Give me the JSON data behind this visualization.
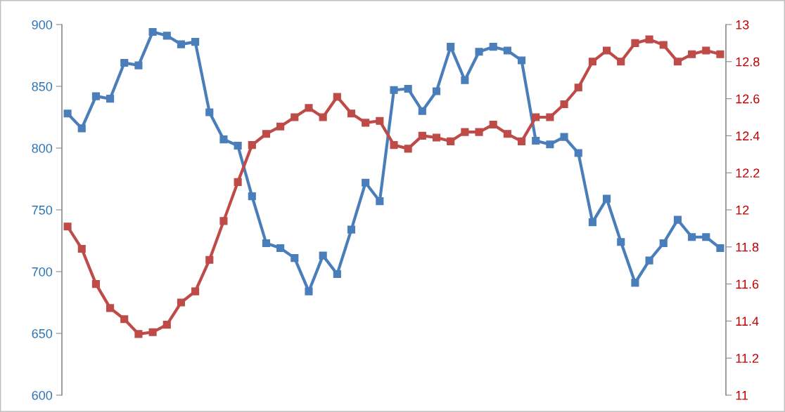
{
  "chart_data": {
    "type": "line",
    "categories": [
      null,
      null,
      null,
      null,
      null,
      null,
      null,
      null,
      null,
      null,
      null,
      null,
      null,
      null,
      null,
      null,
      null,
      null,
      null,
      null,
      null,
      null,
      null,
      null,
      null,
      null,
      null,
      null,
      null,
      null,
      null,
      null,
      null,
      null,
      null,
      null,
      null,
      null,
      null,
      null,
      null,
      null,
      null,
      null,
      null,
      null,
      null
    ],
    "series": [
      {
        "color": "#4a7ebb",
        "values": [
          828,
          816,
          842,
          840,
          869,
          867,
          894,
          891,
          884,
          886,
          829,
          807,
          802,
          761,
          723,
          719,
          711,
          684,
          713,
          698,
          734,
          772,
          757,
          847,
          848,
          830,
          846,
          882,
          855,
          878,
          882,
          879,
          871,
          806,
          803,
          809,
          796,
          740,
          759,
          724,
          691,
          709,
          723,
          742,
          728,
          728,
          719
        ]
      },
      {
        "color": "#be4b48",
        "axis": "y2",
        "values": [
          11.91,
          11.79,
          11.6,
          11.47,
          11.41,
          11.33,
          11.34,
          11.38,
          11.5,
          11.56,
          11.73,
          11.94,
          12.15,
          12.35,
          12.41,
          12.45,
          12.5,
          12.55,
          12.5,
          12.61,
          12.52,
          12.47,
          12.48,
          12.35,
          12.33,
          12.4,
          12.39,
          12.37,
          12.42,
          12.42,
          12.46,
          12.41,
          12.37,
          12.5,
          12.5,
          12.57,
          12.66,
          12.8,
          12.86,
          12.8,
          12.9,
          12.92,
          12.89,
          12.8,
          12.84,
          12.86,
          12.84
        ]
      }
    ],
    "ylim": [
      600,
      900
    ],
    "yticks": [
      600,
      650,
      700,
      750,
      800,
      850,
      900
    ],
    "y2lim": [
      11,
      13
    ],
    "y2ticks": [
      11,
      {
        "value": 11.2,
        "label": "11.2"
      },
      {
        "value": 11.4,
        "label": "11.4"
      },
      {
        "value": 11.6,
        "label": "11.6"
      },
      {
        "value": 11.8,
        "label": "11.8"
      },
      12,
      {
        "value": 12.2,
        "label": "12.2"
      },
      {
        "value": 12.4,
        "label": "12.4"
      },
      {
        "value": 12.6,
        "label": "12.6"
      },
      {
        "value": 12.8,
        "label": "12.8"
      },
      13
    ],
    "marker": "square",
    "line_style": "solid",
    "grid": false,
    "legend": false
  }
}
